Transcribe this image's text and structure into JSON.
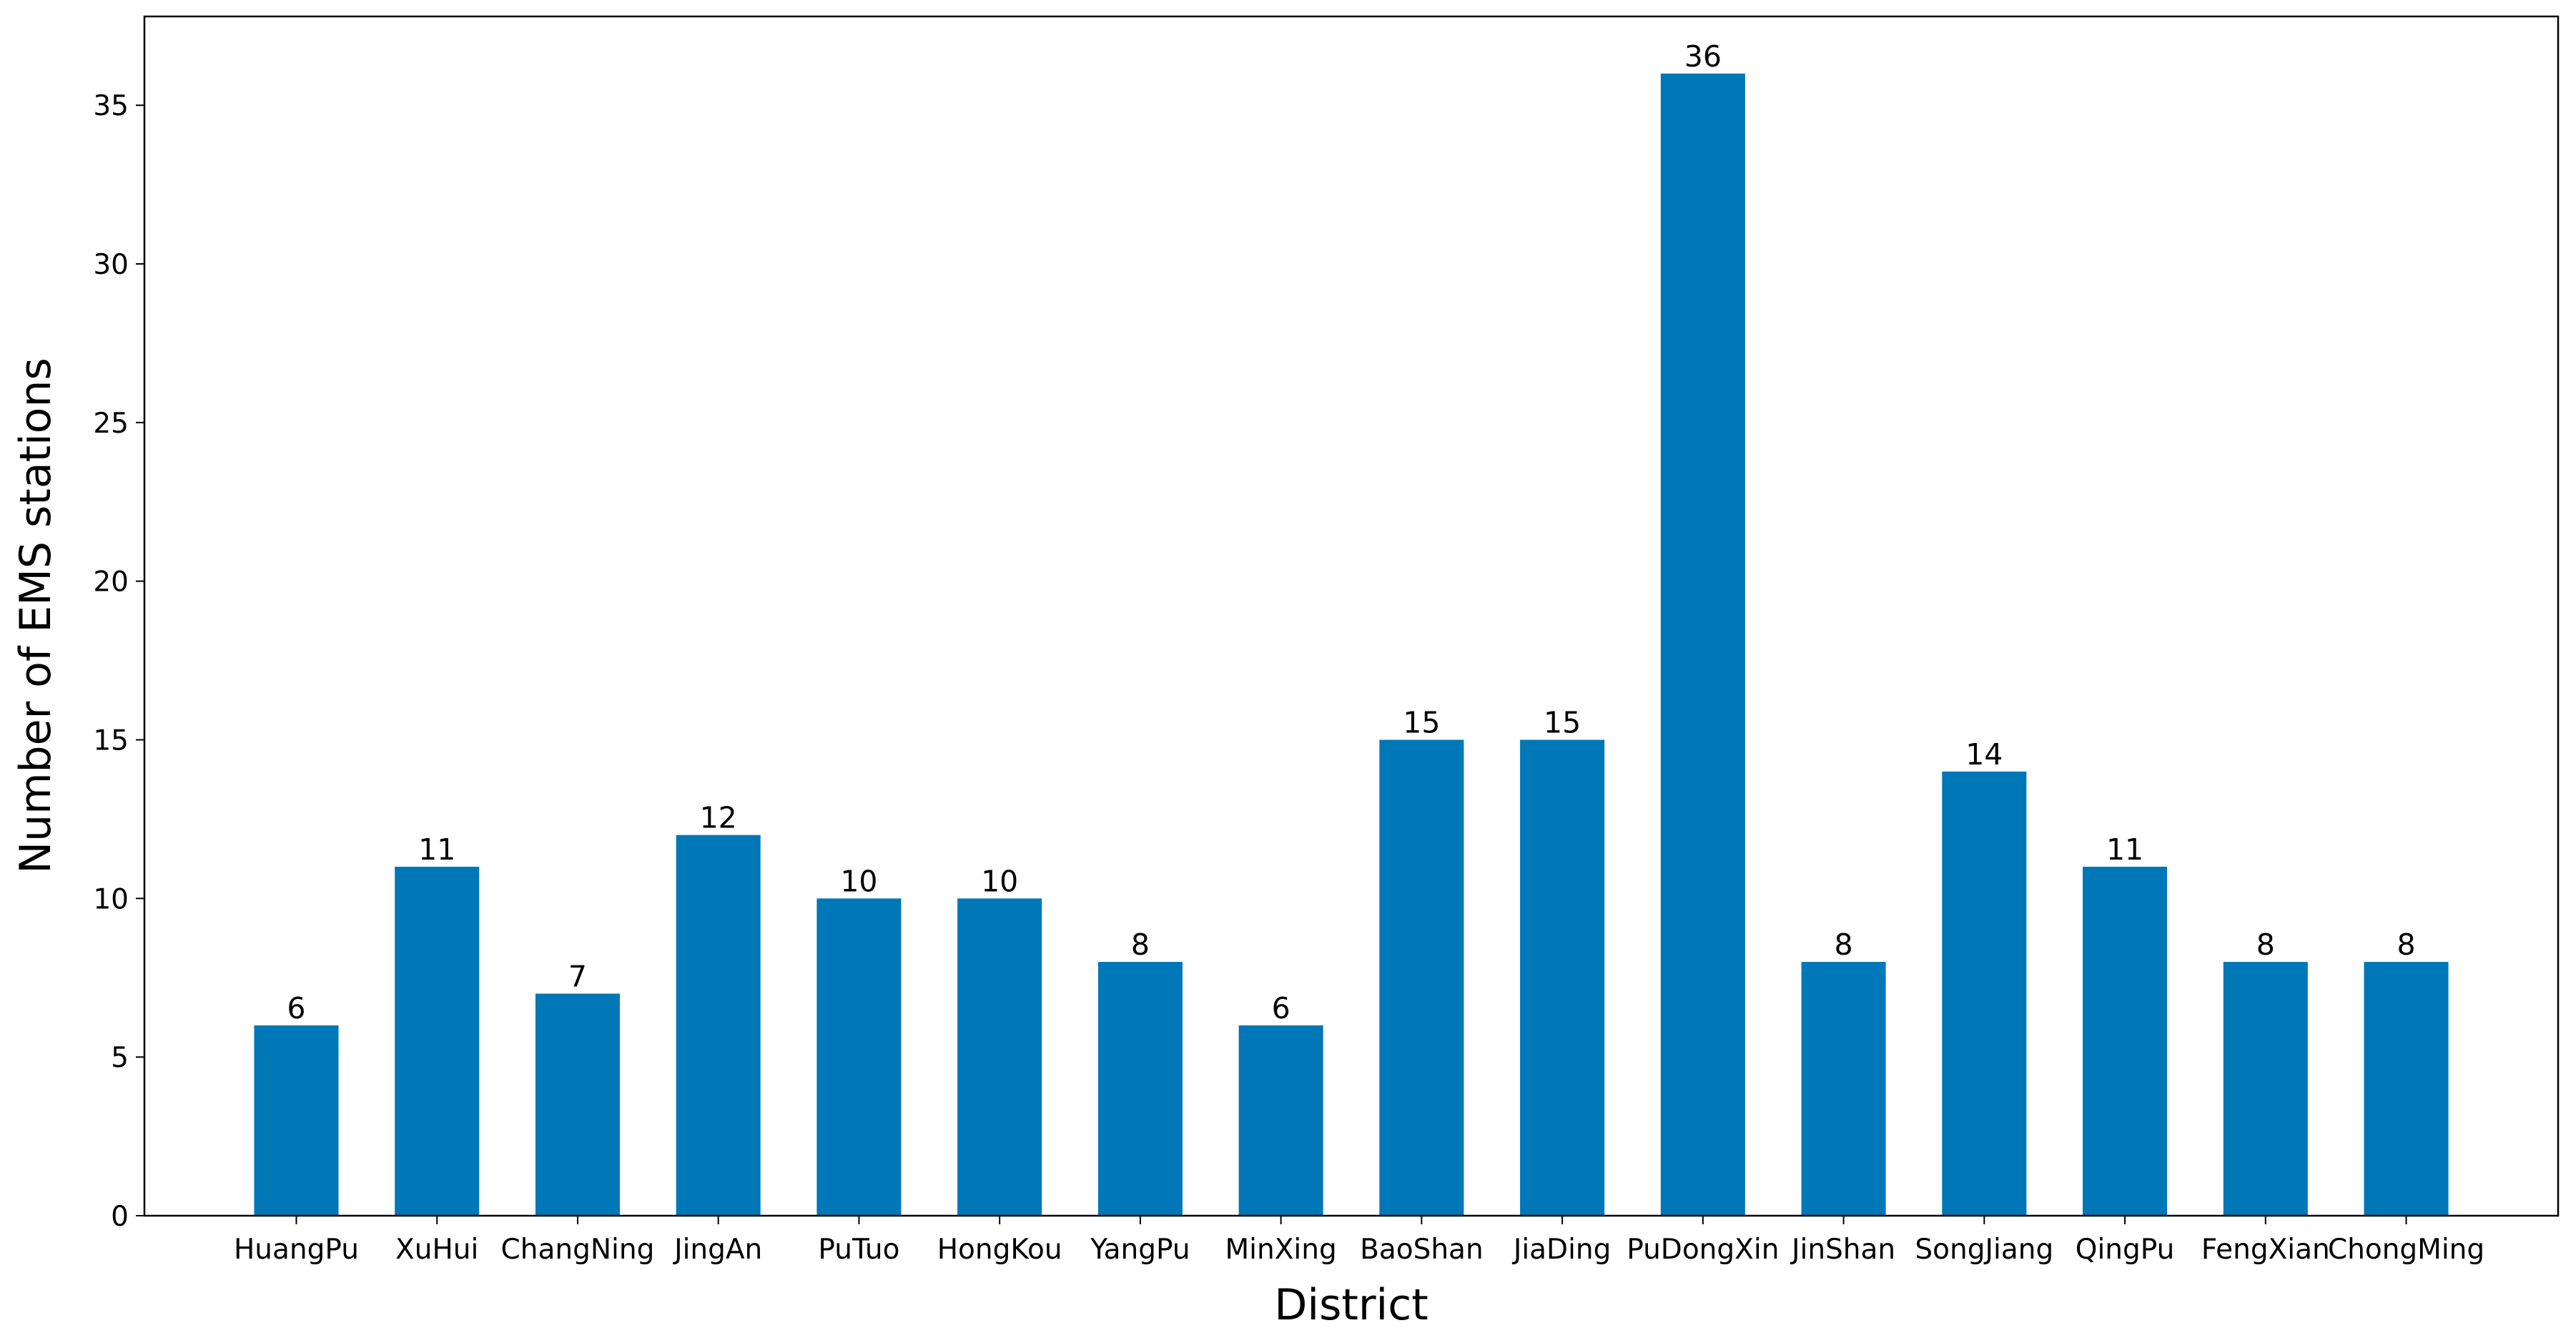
{
  "chart_data": {
    "type": "bar",
    "x_label": "District",
    "y_label": "Number of EMS stations",
    "categories": [
      "HuangPu",
      "XuHui",
      "ChangNing",
      "JingAn",
      "PuTuo",
      "HongKou",
      "YangPu",
      "MinXing",
      "BaoShan",
      "JiaDing",
      "PuDongXin",
      "JinShan",
      "SongJiang",
      "QingPu",
      "FengXian",
      "ChongMing"
    ],
    "values": [
      6,
      11,
      7,
      12,
      10,
      10,
      8,
      6,
      15,
      15,
      36,
      8,
      14,
      11,
      8,
      8
    ],
    "color": "#0077b6",
    "ylim": [
      0,
      37.8
    ],
    "yticks": [
      0,
      5,
      10,
      15,
      20,
      25,
      30,
      35
    ],
    "grid": false
  }
}
